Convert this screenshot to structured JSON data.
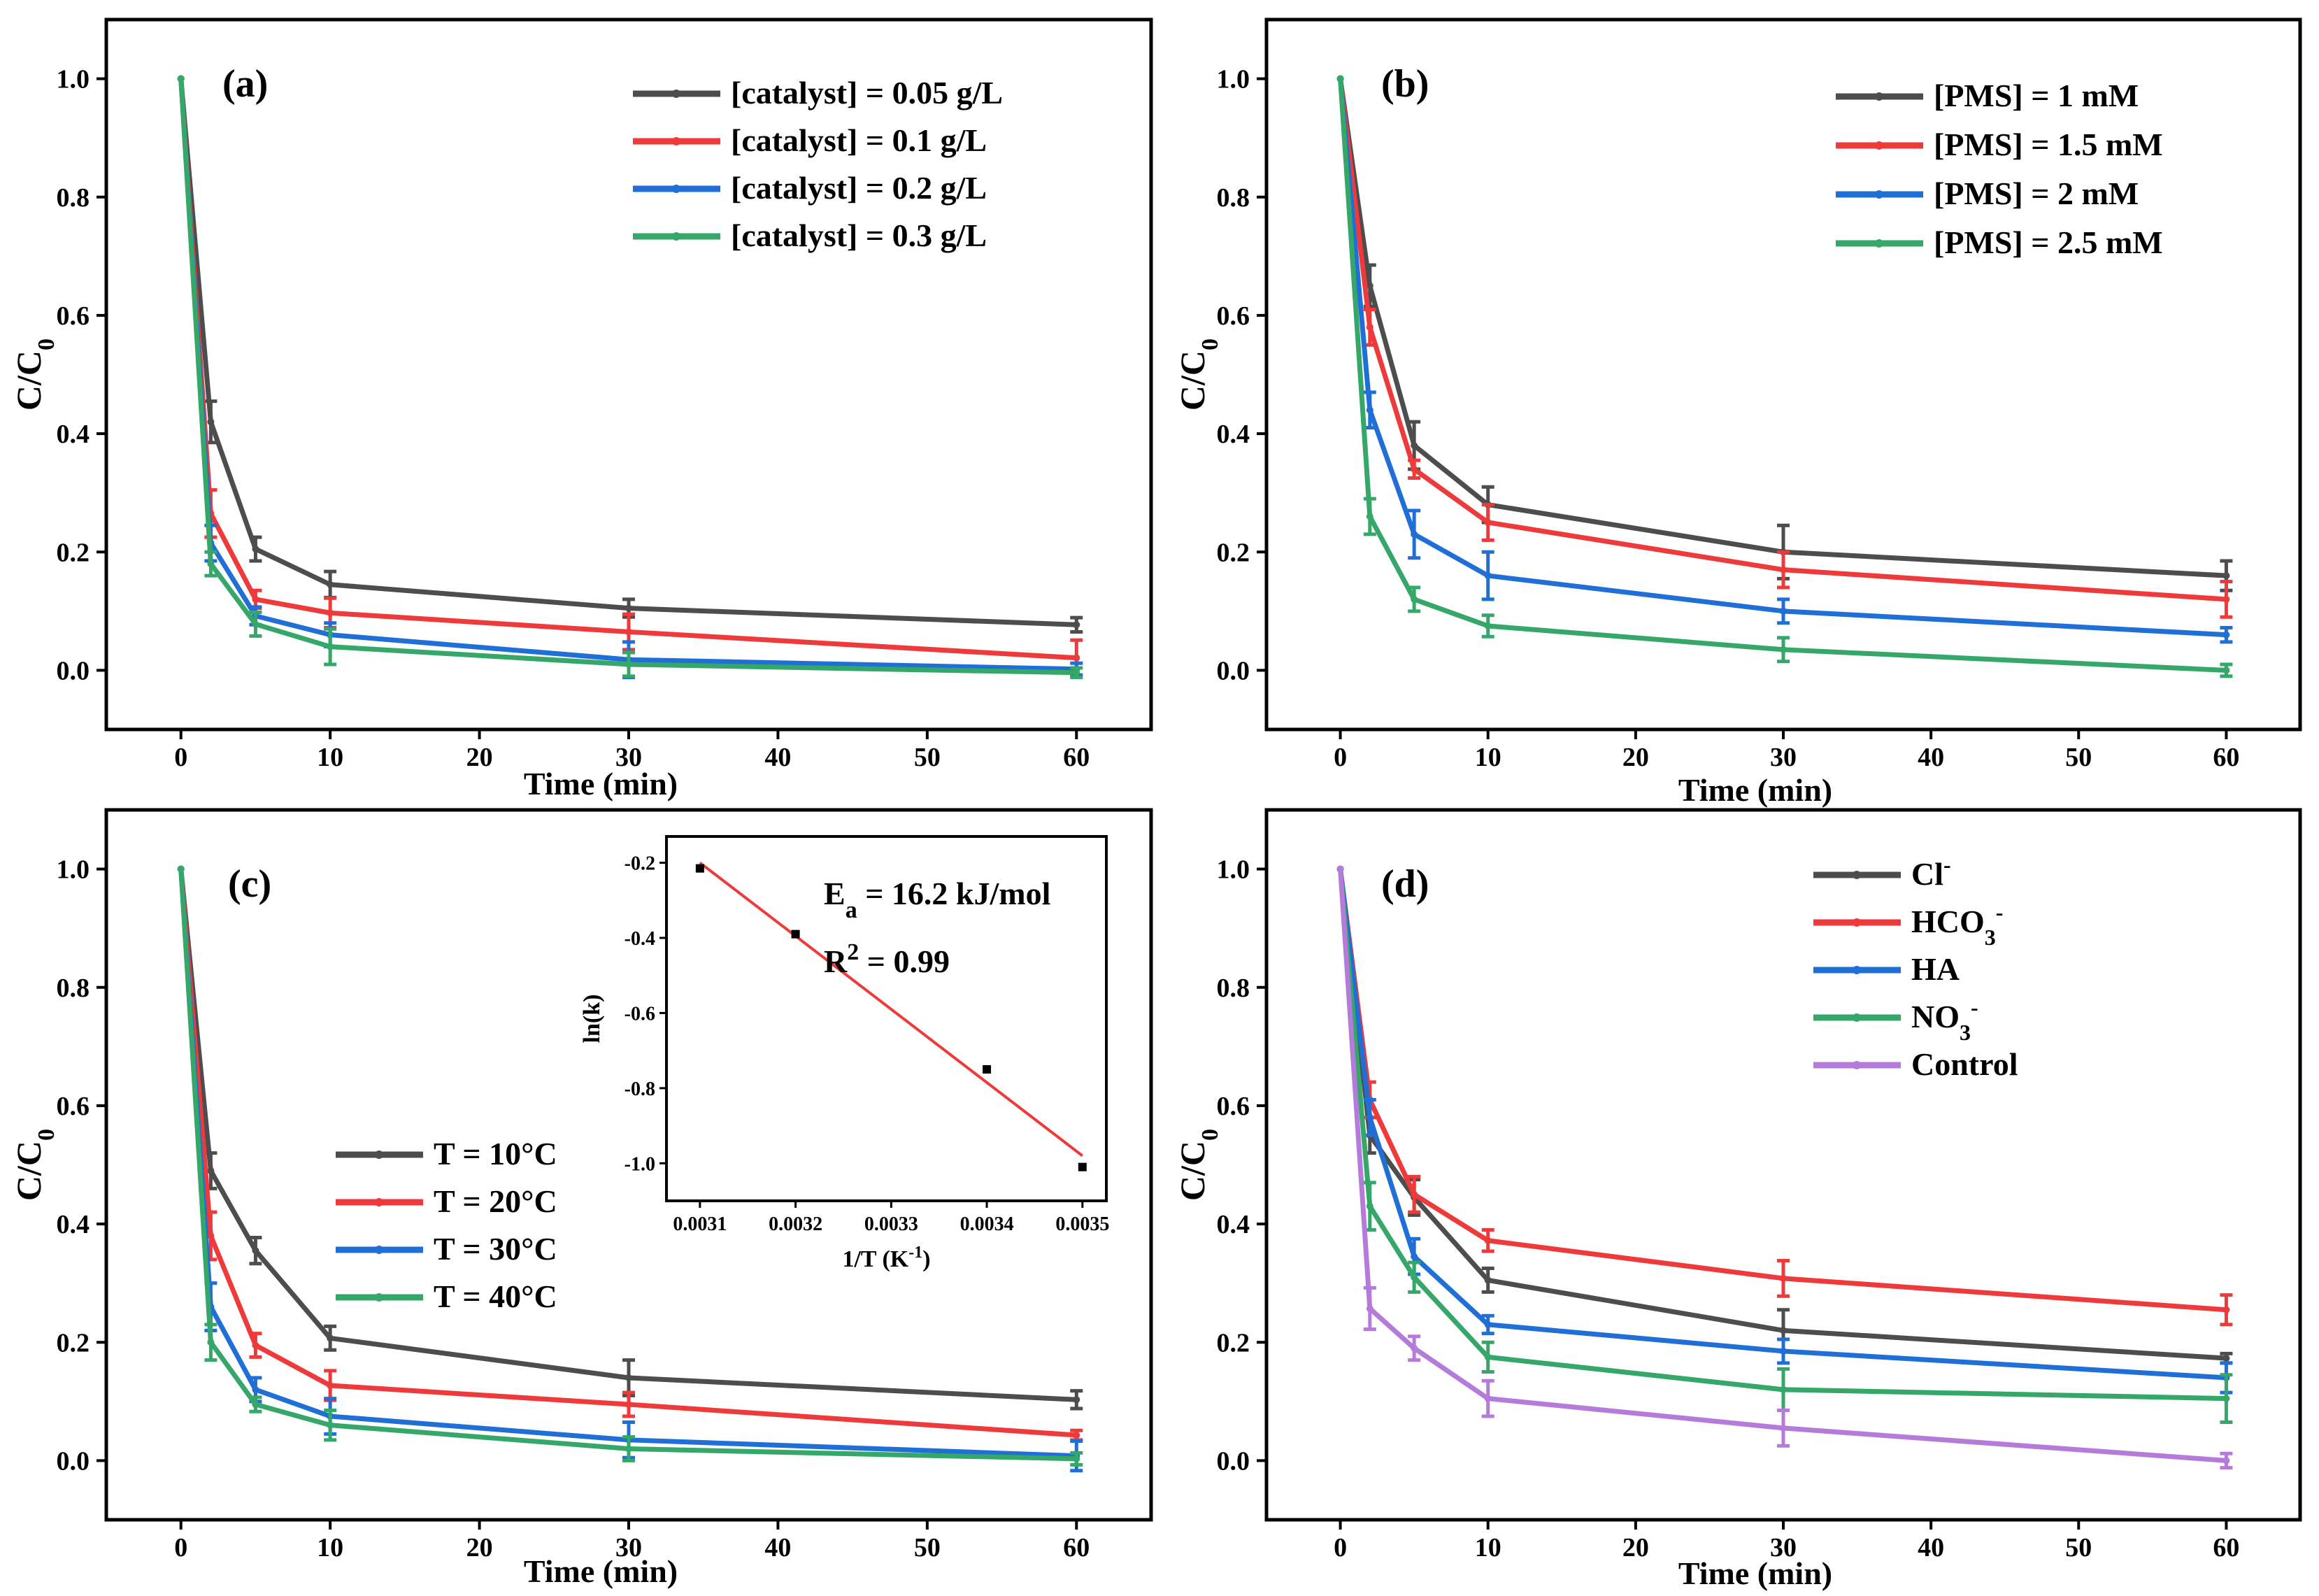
{
  "chart_data": [
    {
      "type": "line",
      "panel_label": "(a)",
      "xlabel": "Time (min)",
      "ylabel_main": "C/C",
      "ylabel_sub": "0",
      "xlim": [
        -5,
        65
      ],
      "ylim": [
        -0.1,
        1.1
      ],
      "xticks": [
        0,
        10,
        20,
        30,
        40,
        50,
        60
      ],
      "yticks": [
        0.0,
        0.2,
        0.4,
        0.6,
        0.8,
        1.0
      ],
      "xtick_labels": [
        "0",
        "10",
        "20",
        "30",
        "40",
        "50",
        "60"
      ],
      "ytick_labels": [
        "0.0",
        "0.2",
        "0.4",
        "0.6",
        "0.8",
        "1.0"
      ],
      "legend_position": "top-right",
      "x": [
        0,
        2,
        5,
        10,
        30,
        60
      ],
      "series": [
        {
          "name": "[catalyst] = 0.05 g/L",
          "color": "#4d4d4d",
          "values": [
            1.0,
            0.42,
            0.205,
            0.145,
            0.105,
            0.077
          ],
          "errors": [
            0,
            0.035,
            0.02,
            0.022,
            0.015,
            0.012
          ]
        },
        {
          "name": "[catalyst] = 0.1 g/L",
          "color": "#ee3a3a",
          "values": [
            1.0,
            0.265,
            0.12,
            0.097,
            0.065,
            0.021
          ],
          "errors": [
            0,
            0.04,
            0.015,
            0.025,
            0.03,
            0.03
          ]
        },
        {
          "name": "[catalyst] = 0.2 g/L",
          "color": "#1f6fd6",
          "values": [
            1.0,
            0.215,
            0.092,
            0.06,
            0.018,
            0.002
          ],
          "errors": [
            0,
            0.03,
            0.015,
            0.02,
            0.03,
            0.01
          ]
        },
        {
          "name": "[catalyst] = 0.3 g/L",
          "color": "#34a769",
          "values": [
            1.0,
            0.18,
            0.078,
            0.04,
            0.01,
            -0.004
          ],
          "errors": [
            0,
            0.02,
            0.02,
            0.03,
            0.02,
            0.008
          ]
        }
      ]
    },
    {
      "type": "line",
      "panel_label": "(b)",
      "xlabel": "Time (min)",
      "ylabel_main": "C/C",
      "ylabel_sub": "0",
      "xlim": [
        -5,
        65
      ],
      "ylim": [
        -0.1,
        1.1
      ],
      "xticks": [
        0,
        10,
        20,
        30,
        40,
        50,
        60
      ],
      "yticks": [
        0.0,
        0.2,
        0.4,
        0.6,
        0.8,
        1.0
      ],
      "xtick_labels": [
        "0",
        "10",
        "20",
        "30",
        "40",
        "50",
        "60"
      ],
      "ytick_labels": [
        "0.0",
        "0.2",
        "0.4",
        "0.6",
        "0.8",
        "1.0"
      ],
      "legend_position": "top-right",
      "x": [
        0,
        2,
        5,
        10,
        30,
        60
      ],
      "series": [
        {
          "name": "[PMS] = 1 mM",
          "color": "#4d4d4d",
          "values": [
            1.0,
            0.65,
            0.38,
            0.28,
            0.2,
            0.16
          ],
          "errors": [
            0,
            0.035,
            0.04,
            0.03,
            0.045,
            0.025
          ]
        },
        {
          "name": "[PMS] = 1.5 mM",
          "color": "#ee3a3a",
          "values": [
            1.0,
            0.58,
            0.34,
            0.25,
            0.17,
            0.12
          ],
          "errors": [
            0,
            0.03,
            0.015,
            0.03,
            0.03,
            0.03
          ]
        },
        {
          "name": "[PMS] = 2 mM",
          "color": "#1f6fd6",
          "values": [
            1.0,
            0.44,
            0.23,
            0.16,
            0.1,
            0.06
          ],
          "errors": [
            0,
            0.03,
            0.04,
            0.04,
            0.02,
            0.012
          ]
        },
        {
          "name": "[PMS] = 2.5 mM",
          "color": "#34a769",
          "values": [
            1.0,
            0.26,
            0.12,
            0.075,
            0.035,
            0.0
          ],
          "errors": [
            0,
            0.03,
            0.02,
            0.018,
            0.02,
            0.01
          ]
        }
      ]
    },
    {
      "type": "line",
      "panel_label": "(c)",
      "xlabel": "Time (min)",
      "ylabel_main": "C/C",
      "ylabel_sub": "0",
      "xlim": [
        -5,
        65
      ],
      "ylim": [
        -0.1,
        1.1
      ],
      "xticks": [
        0,
        10,
        20,
        30,
        40,
        50,
        60
      ],
      "yticks": [
        0.0,
        0.2,
        0.4,
        0.6,
        0.8,
        1.0
      ],
      "xtick_labels": [
        "0",
        "10",
        "20",
        "30",
        "40",
        "50",
        "60"
      ],
      "ytick_labels": [
        "0.0",
        "0.2",
        "0.4",
        "0.6",
        "0.8",
        "1.0"
      ],
      "legend_position": "center-left",
      "x": [
        0,
        2,
        5,
        10,
        30,
        60
      ],
      "series": [
        {
          "name": "T = 10°C",
          "color": "#4d4d4d",
          "values": [
            1.0,
            0.49,
            0.355,
            0.207,
            0.14,
            0.103
          ],
          "errors": [
            0,
            0.03,
            0.022,
            0.02,
            0.03,
            0.015
          ]
        },
        {
          "name": "T = 20°C",
          "color": "#ee3a3a",
          "values": [
            1.0,
            0.38,
            0.195,
            0.127,
            0.095,
            0.043
          ],
          "errors": [
            0,
            0.04,
            0.02,
            0.025,
            0.02,
            0.008
          ]
        },
        {
          "name": "T = 30°C",
          "color": "#1f6fd6",
          "values": [
            1.0,
            0.26,
            0.12,
            0.075,
            0.035,
            0.008
          ],
          "errors": [
            0,
            0.04,
            0.02,
            0.03,
            0.03,
            0.025
          ]
        },
        {
          "name": "T = 40°C",
          "color": "#34a769",
          "values": [
            1.0,
            0.2,
            0.095,
            0.06,
            0.02,
            0.003
          ],
          "errors": [
            0,
            0.03,
            0.012,
            0.025,
            0.02,
            0.01
          ]
        }
      ],
      "inset": {
        "type": "scatter",
        "xlabel_main": "1/T (K",
        "xlabel_sup": "-1",
        "xlabel_end": ")",
        "ylabel": "ln(k)",
        "xlim": [
          0.003065,
          0.003525
        ],
        "ylim": [
          -1.1,
          -0.13
        ],
        "xticks": [
          0.0031,
          0.0032,
          0.0033,
          0.0034,
          0.0035
        ],
        "yticks": [
          -0.2,
          -0.4,
          -0.6,
          -0.8,
          -1.0
        ],
        "xtick_labels": [
          "0.0031",
          "0.0032",
          "0.0033",
          "0.0034",
          "0.0035"
        ],
        "ytick_labels": [
          "-0.2",
          "-0.4",
          "-0.6",
          "-0.8",
          "-1.0"
        ],
        "points": [
          {
            "x": 0.0031,
            "y": -0.215
          },
          {
            "x": 0.0032,
            "y": -0.39
          },
          {
            "x": 0.0034,
            "y": -0.75
          },
          {
            "x": 0.0035,
            "y": -1.01
          }
        ],
        "fit": {
          "x": [
            0.0031,
            0.0035
          ],
          "y": [
            -0.2,
            -0.98
          ],
          "color": "#ee3a3a"
        },
        "ea_main": "E",
        "ea_sub": "a",
        "ea_rest": " = 16.2 kJ/mol",
        "r2_main": "R",
        "r2_sup": "2",
        "r2_rest": " = 0.99"
      }
    },
    {
      "type": "line",
      "panel_label": "(d)",
      "xlabel": "Time (min)",
      "ylabel_main": "C/C",
      "ylabel_sub": "0",
      "xlim": [
        -5,
        65
      ],
      "ylim": [
        -0.1,
        1.1
      ],
      "xticks": [
        0,
        10,
        20,
        30,
        40,
        50,
        60
      ],
      "yticks": [
        0.0,
        0.2,
        0.4,
        0.6,
        0.8,
        1.0
      ],
      "xtick_labels": [
        "0",
        "10",
        "20",
        "30",
        "40",
        "50",
        "60"
      ],
      "ytick_labels": [
        "0.0",
        "0.2",
        "0.4",
        "0.6",
        "0.8",
        "1.0"
      ],
      "legend_position": "top-right",
      "x": [
        0,
        2,
        5,
        10,
        30,
        60
      ],
      "series": [
        {
          "name": "Cl",
          "sup": "-",
          "sub": "",
          "tail": "",
          "color": "#4d4d4d",
          "values": [
            1.0,
            0.55,
            0.445,
            0.305,
            0.22,
            0.173
          ],
          "errors": [
            0,
            0.03,
            0.03,
            0.02,
            0.035,
            0.008
          ]
        },
        {
          "name": "HCO",
          "sup": "-",
          "sub": "3",
          "tail": "",
          "color": "#ee3a3a",
          "values": [
            1.0,
            0.61,
            0.45,
            0.372,
            0.308,
            0.255
          ],
          "errors": [
            0,
            0.03,
            0.03,
            0.018,
            0.03,
            0.025
          ]
        },
        {
          "name": "HA",
          "sup": "",
          "sub": "",
          "tail": "",
          "color": "#1f6fd6",
          "values": [
            1.0,
            0.58,
            0.345,
            0.23,
            0.185,
            0.14
          ],
          "errors": [
            0,
            0.03,
            0.03,
            0.015,
            0.02,
            0.025
          ]
        },
        {
          "name": "NO",
          "sup": "-",
          "sub": "3",
          "tail": "",
          "color": "#34a769",
          "values": [
            1.0,
            0.43,
            0.31,
            0.175,
            0.12,
            0.105
          ],
          "errors": [
            0,
            0.04,
            0.025,
            0.025,
            0.035,
            0.04
          ]
        },
        {
          "name": "Control",
          "sup": "",
          "sub": "",
          "tail": "",
          "color": "#b57bdb",
          "values": [
            1.0,
            0.257,
            0.19,
            0.105,
            0.055,
            0.0
          ],
          "errors": [
            0,
            0.035,
            0.02,
            0.03,
            0.03,
            0.012
          ]
        }
      ]
    }
  ]
}
